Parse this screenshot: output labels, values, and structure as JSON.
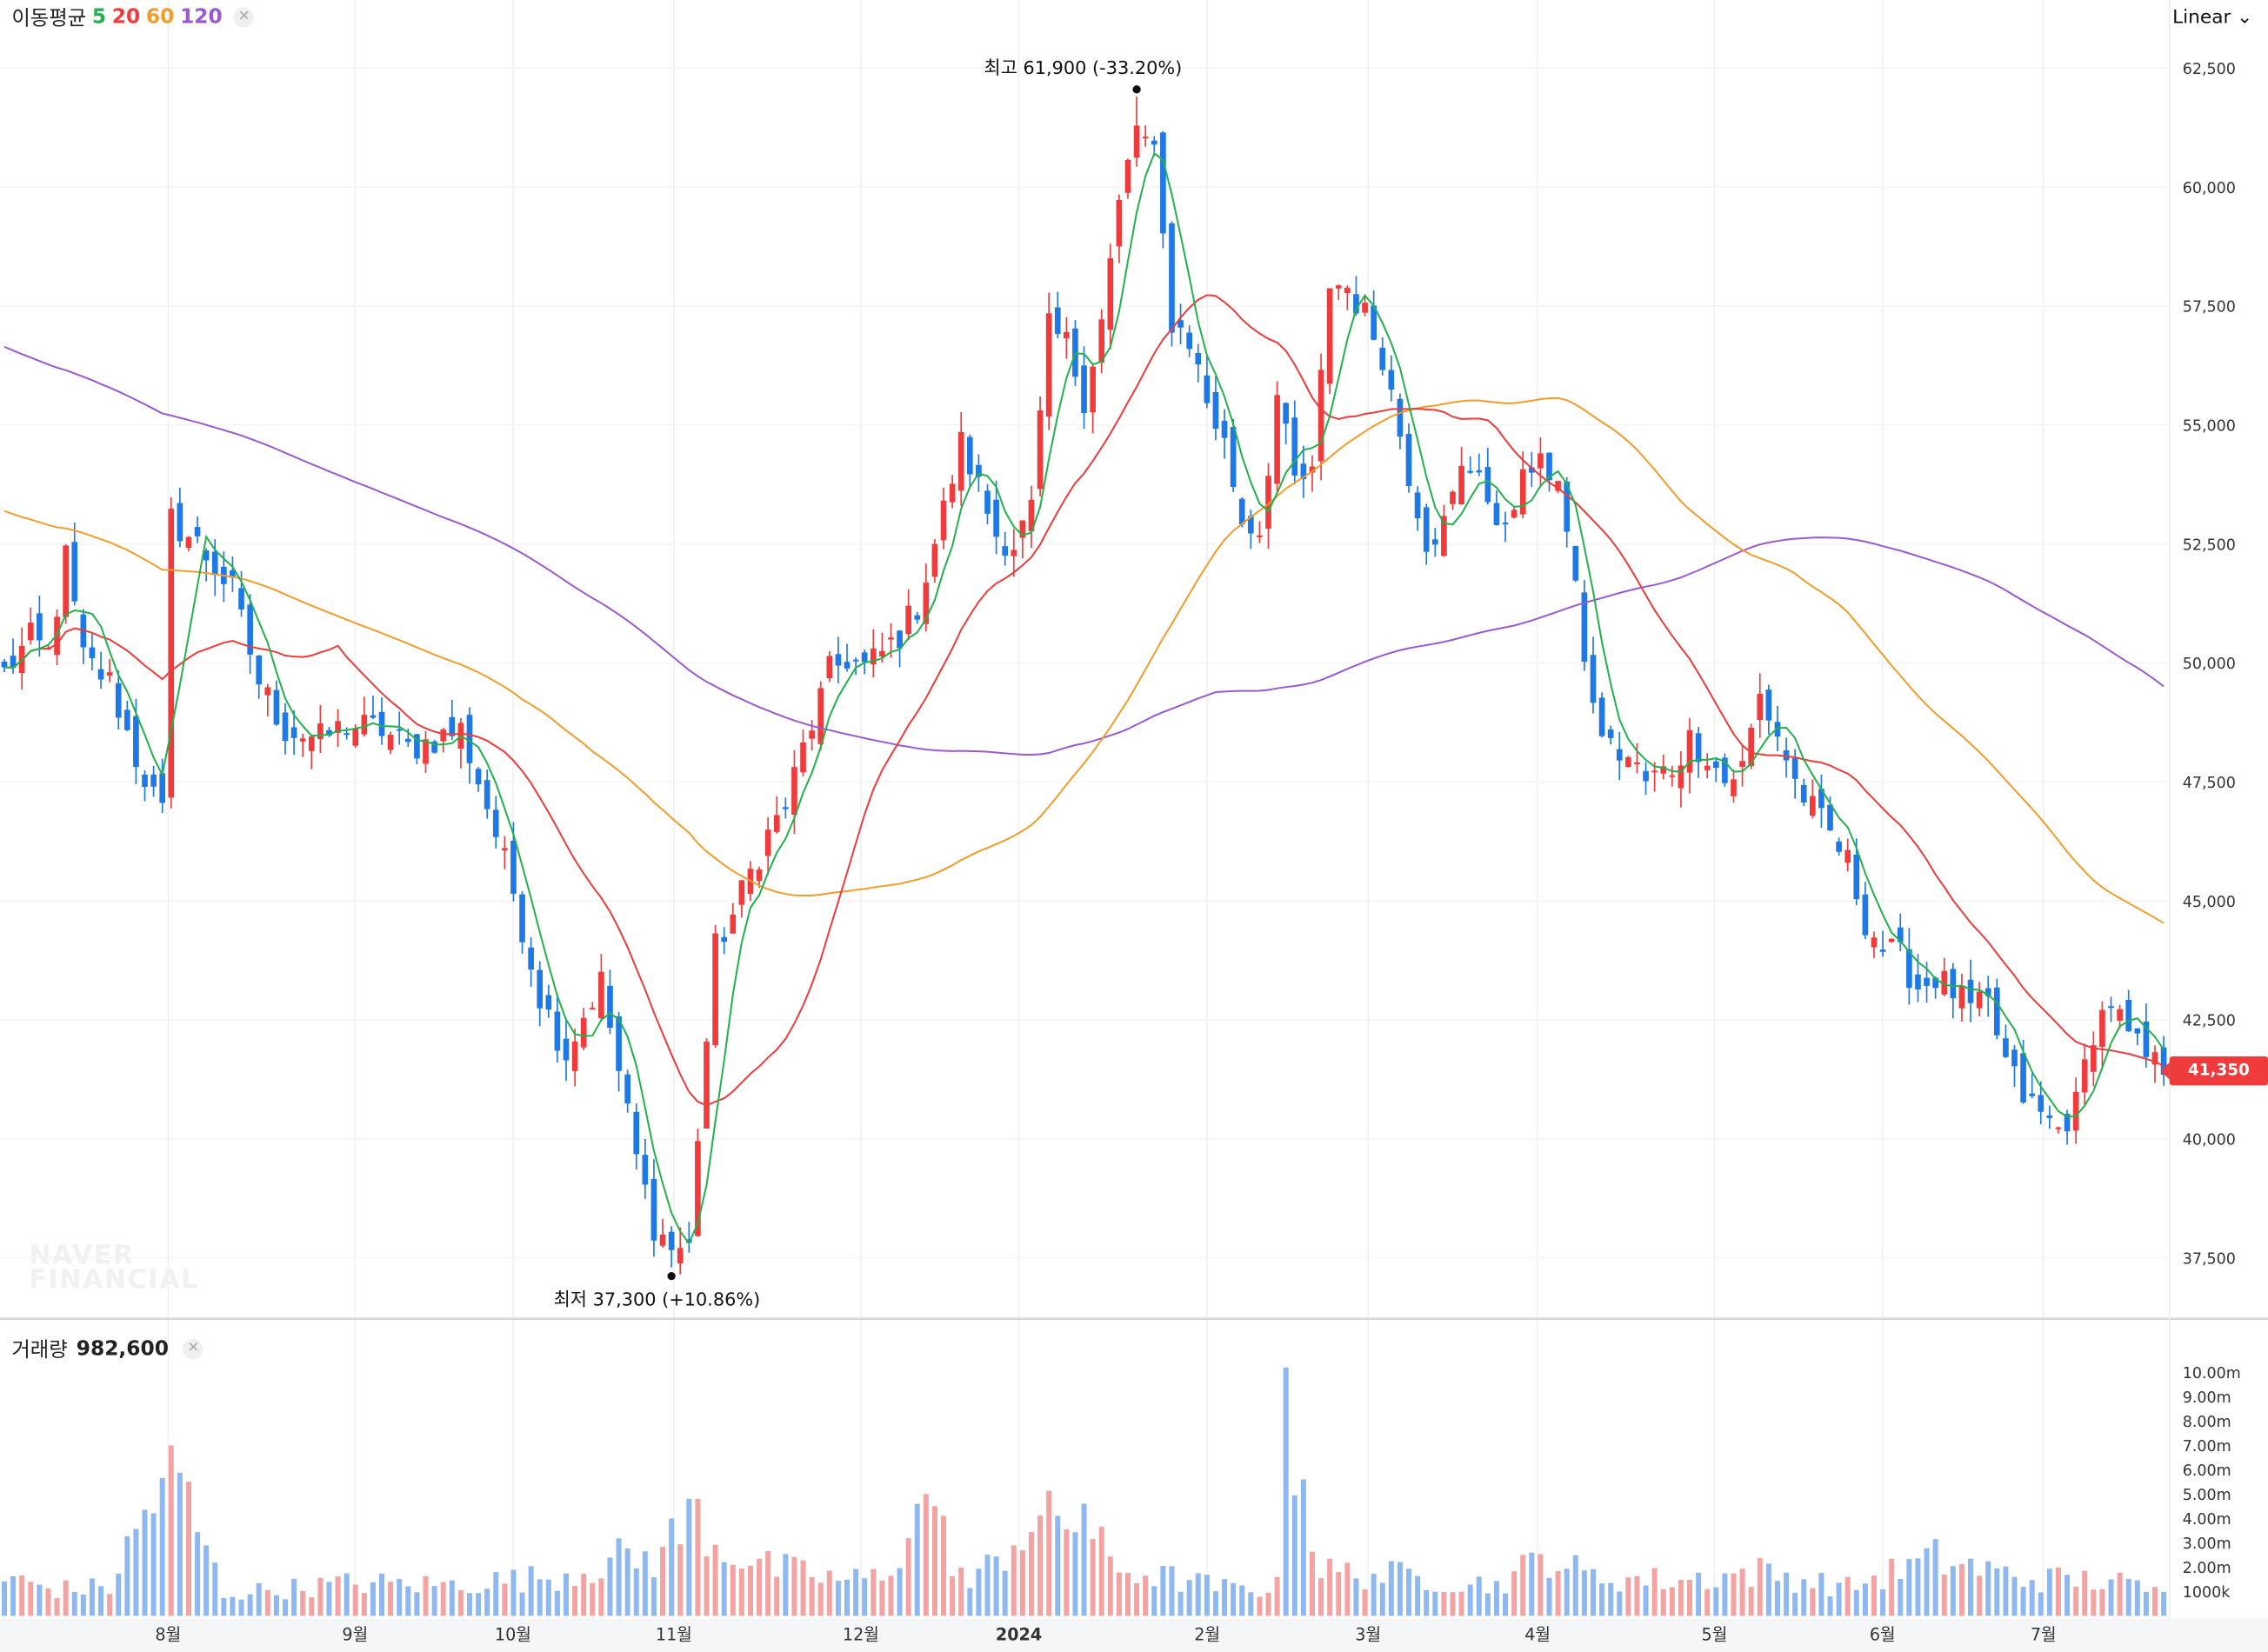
{
  "header": {
    "legend_label": "이동평균",
    "ma_periods": [
      "5",
      "20",
      "60",
      "120"
    ],
    "scale_label": "Linear"
  },
  "volume_header": {
    "label": "거래량",
    "value": "982,600"
  },
  "watermark": [
    "NAVER",
    "FINANCIAL"
  ],
  "current_price_label": "41,350",
  "colors": {
    "up": "#ef3b3b",
    "down": "#1e78e6",
    "ma5": "#22b14c",
    "ma20": "#ef3b3b",
    "ma60": "#f39c2b",
    "ma120": "#9b59d0",
    "volume_up": "#f4a3a3",
    "volume_down": "#8fb8f0"
  },
  "chart_data": {
    "type": "candlestick",
    "price_axis_ticks": [
      "62,500",
      "60,000",
      "57,500",
      "55,000",
      "52,500",
      "50,000",
      "47,500",
      "45,000",
      "42,500",
      "40,000",
      "37,500"
    ],
    "price_axis_range": [
      36700,
      63000
    ],
    "volume_axis_ticks": [
      "10.00m",
      "9.00m",
      "8.00m",
      "7.00m",
      "6.00m",
      "5.00m",
      "4.00m",
      "3.00m",
      "2.00m",
      "1000k"
    ],
    "volume_axis_range": [
      0,
      10400000
    ],
    "x_labels": [
      "8월",
      "9월",
      "10월",
      "11월",
      "12월",
      "2024",
      "2월",
      "3월",
      "4월",
      "5월",
      "6월",
      "7월"
    ],
    "high_annotation": {
      "label": "최고",
      "value": "61,900 (-33.20%)",
      "price": 61900
    },
    "low_annotation": {
      "label": "최저",
      "value": "37,300 (+10.86%)",
      "price": 37300
    },
    "current_price": 41350,
    "current_volume": "982,600",
    "moving_averages": [
      "5",
      "20",
      "60",
      "120"
    ],
    "close_path": [
      [
        0,
        49800
      ],
      [
        3,
        50500
      ],
      [
        5,
        50200
      ],
      [
        7,
        52200
      ],
      [
        9,
        50100
      ],
      [
        12,
        49600
      ],
      [
        15,
        48000
      ],
      [
        18,
        46800
      ],
      [
        19,
        53000
      ],
      [
        22,
        52500
      ],
      [
        26,
        51500
      ],
      [
        29,
        49600
      ],
      [
        32,
        48600
      ],
      [
        36,
        48400
      ],
      [
        39,
        48700
      ],
      [
        43,
        48600
      ],
      [
        46,
        48200
      ],
      [
        49,
        48400
      ],
      [
        52,
        48600
      ],
      [
        55,
        47000
      ],
      [
        58,
        45200
      ],
      [
        61,
        43000
      ],
      [
        64,
        41800
      ],
      [
        66,
        42600
      ],
      [
        68,
        43300
      ],
      [
        70,
        41400
      ],
      [
        72,
        39600
      ],
      [
        74,
        38200
      ],
      [
        76,
        37700
      ],
      [
        78,
        37700
      ],
      [
        79,
        40100
      ],
      [
        81,
        44000
      ],
      [
        83,
        44700
      ],
      [
        85,
        45600
      ],
      [
        87,
        46400
      ],
      [
        89,
        47000
      ],
      [
        91,
        48200
      ],
      [
        94,
        49800
      ],
      [
        96,
        50100
      ],
      [
        98,
        49900
      ],
      [
        100,
        50200
      ],
      [
        102,
        50600
      ],
      [
        104,
        51200
      ],
      [
        107,
        53200
      ],
      [
        109,
        54600
      ],
      [
        111,
        53700
      ],
      [
        113,
        52700
      ],
      [
        115,
        52500
      ],
      [
        117,
        53200
      ],
      [
        119,
        57000
      ],
      [
        121,
        56700
      ],
      [
        123,
        55600
      ],
      [
        125,
        57200
      ],
      [
        127,
        59600
      ],
      [
        129,
        61300
      ],
      [
        131,
        60600
      ],
      [
        133,
        57200
      ],
      [
        135,
        56800
      ],
      [
        137,
        55500
      ],
      [
        139,
        54600
      ],
      [
        141,
        53000
      ],
      [
        143,
        52800
      ],
      [
        145,
        55600
      ],
      [
        147,
        53800
      ],
      [
        149,
        53900
      ],
      [
        151,
        58000
      ],
      [
        153,
        57900
      ],
      [
        155,
        57300
      ],
      [
        157,
        56500
      ],
      [
        160,
        54000
      ],
      [
        162,
        52600
      ],
      [
        164,
        52900
      ],
      [
        166,
        54000
      ],
      [
        168,
        54200
      ],
      [
        170,
        52600
      ],
      [
        172,
        53500
      ],
      [
        174,
        54100
      ],
      [
        177,
        54000
      ],
      [
        179,
        51400
      ],
      [
        181,
        49000
      ],
      [
        183,
        48200
      ],
      [
        185,
        48000
      ],
      [
        187,
        47500
      ],
      [
        190,
        47800
      ],
      [
        192,
        48400
      ],
      [
        194,
        48100
      ],
      [
        196,
        47500
      ],
      [
        198,
        47800
      ],
      [
        200,
        49300
      ],
      [
        202,
        48500
      ],
      [
        204,
        47500
      ],
      [
        206,
        46900
      ],
      [
        208,
        46400
      ],
      [
        210,
        45800
      ],
      [
        212,
        44600
      ],
      [
        214,
        44000
      ],
      [
        216,
        43800
      ],
      [
        218,
        43200
      ],
      [
        220,
        43400
      ],
      [
        222,
        43100
      ],
      [
        224,
        42700
      ],
      [
        226,
        42800
      ],
      [
        228,
        41600
      ],
      [
        230,
        40900
      ],
      [
        232,
        40500
      ],
      [
        234,
        40200
      ],
      [
        236,
        40700
      ],
      [
        238,
        42300
      ],
      [
        240,
        42900
      ],
      [
        242,
        42100
      ],
      [
        244,
        41700
      ],
      [
        246,
        41400
      ]
    ],
    "volume_profile": [
      [
        0,
        1.7
      ],
      [
        6,
        1.2
      ],
      [
        12,
        1.3
      ],
      [
        15,
        3.8
      ],
      [
        19,
        7.0
      ],
      [
        25,
        1.0
      ],
      [
        40,
        1.5
      ],
      [
        50,
        1.4
      ],
      [
        60,
        1.7
      ],
      [
        64,
        1.9
      ],
      [
        70,
        2.6
      ],
      [
        74,
        2.6
      ],
      [
        79,
        4.8
      ],
      [
        81,
        3.3
      ],
      [
        87,
        2.2
      ],
      [
        96,
        1.6
      ],
      [
        100,
        1.8
      ],
      [
        105,
        5.0
      ],
      [
        110,
        1.3
      ],
      [
        116,
        3.9
      ],
      [
        123,
        4.6
      ],
      [
        126,
        2.2
      ],
      [
        140,
        1.2
      ],
      [
        145,
        1.3
      ],
      [
        146,
        10.2
      ],
      [
        150,
        2.0
      ],
      [
        160,
        1.8
      ],
      [
        170,
        1.4
      ],
      [
        176,
        2.8
      ],
      [
        180,
        1.8
      ],
      [
        190,
        1.6
      ],
      [
        200,
        2.0
      ],
      [
        210,
        1.3
      ],
      [
        220,
        2.6
      ],
      [
        230,
        1.7
      ],
      [
        240,
        1.6
      ],
      [
        246,
        0.98
      ]
    ]
  }
}
